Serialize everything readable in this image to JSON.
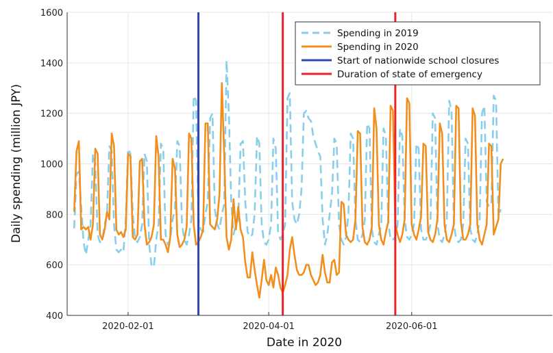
{
  "chart_data": {
    "type": "line",
    "xlabel": "Date in 2020",
    "ylabel": "Daily spending (million JPY)",
    "xlim": [
      "2020-01-06",
      "2020-07-31"
    ],
    "ylim": [
      400,
      1600
    ],
    "x_ticks": [
      "2020-02-01",
      "2020-04-01",
      "2020-06-01"
    ],
    "y_ticks": [
      400,
      600,
      800,
      1000,
      1200,
      1400,
      1600
    ],
    "grid": true,
    "legend_position": "top-right",
    "start_date": "2020-01-09",
    "series": [
      {
        "name": "Spending in 2019",
        "style": "dashed",
        "color": "#87CEEB",
        "values": [
          745,
          960,
          970,
          830,
          690,
          640,
          700,
          760,
          1040,
          1000,
          720,
          690,
          700,
          760,
          800,
          1070,
          1050,
          760,
          660,
          650,
          660,
          650,
          780,
          1060,
          1040,
          800,
          700,
          690,
          710,
          760,
          1040,
          1010,
          680,
          600,
          590,
          700,
          760,
          1080,
          1060,
          720,
          680,
          700,
          780,
          820,
          1090,
          1070,
          760,
          700,
          680,
          720,
          780,
          1270,
          1250,
          780,
          740,
          730,
          800,
          850,
          1180,
          1200,
          820,
          760,
          740,
          800,
          840,
          1410,
          1200,
          850,
          720,
          760,
          780,
          1080,
          1090,
          850,
          730,
          710,
          720,
          800,
          1110,
          1080,
          760,
          690,
          680,
          700,
          760,
          1100,
          1060,
          730,
          700,
          720,
          760,
          1260,
          1280,
          850,
          780,
          760,
          800,
          900,
          1200,
          1210,
          1180,
          1170,
          1110,
          1080,
          1050,
          1030,
          780,
          680,
          720,
          800,
          880,
          1100,
          1080,
          760,
          700,
          680,
          710,
          800,
          1120,
          1100,
          780,
          700,
          690,
          720,
          780,
          1160,
          1140,
          740,
          690,
          680,
          720,
          760,
          1140,
          1110,
          770,
          700,
          700,
          710,
          760,
          1140,
          1110,
          780,
          710,
          700,
          720,
          760,
          1080,
          1060,
          740,
          700,
          700,
          720,
          760,
          1200,
          1180,
          760,
          700,
          690,
          720,
          780,
          1250,
          1210,
          760,
          700,
          690,
          700,
          760,
          1100,
          1080,
          740,
          700,
          690,
          720,
          780,
          1200,
          1230,
          850,
          830,
          840,
          1270,
          1250,
          790,
          820
        ]
      },
      {
        "name": "Spending in 2020",
        "style": "solid",
        "color": "#F28E1C",
        "values": [
          810,
          1050,
          1090,
          740,
          750,
          740,
          750,
          700,
          760,
          1060,
          1040,
          720,
          700,
          740,
          810,
          780,
          1120,
          1070,
          740,
          720,
          730,
          710,
          740,
          1040,
          1030,
          710,
          700,
          720,
          1010,
          1020,
          760,
          680,
          690,
          710,
          760,
          1110,
          1030,
          700,
          700,
          680,
          650,
          710,
          1020,
          980,
          720,
          670,
          680,
          700,
          750,
          1120,
          1100,
          760,
          680,
          690,
          710,
          740,
          1160,
          1160,
          760,
          750,
          740,
          780,
          880,
          1320,
          1040,
          710,
          660,
          700,
          860,
          740,
          830,
          740,
          710,
          610,
          550,
          550,
          650,
          580,
          520,
          470,
          540,
          620,
          540,
          520,
          560,
          510,
          590,
          560,
          510,
          490,
          520,
          560,
          660,
          710,
          640,
          580,
          560,
          560,
          570,
          600,
          600,
          560,
          540,
          520,
          530,
          560,
          640,
          570,
          530,
          530,
          610,
          620,
          560,
          570,
          850,
          840,
          720,
          700,
          690,
          700,
          780,
          1130,
          1120,
          750,
          690,
          680,
          700,
          750,
          1220,
          1140,
          760,
          700,
          680,
          730,
          770,
          1230,
          1210,
          760,
          720,
          690,
          720,
          780,
          1260,
          1240,
          760,
          720,
          700,
          740,
          790,
          1080,
          1070,
          730,
          700,
          690,
          720,
          780,
          1160,
          1120,
          760,
          700,
          690,
          720,
          760,
          1230,
          1220,
          770,
          700,
          700,
          720,
          760,
          1220,
          1190,
          760,
          700,
          680,
          720,
          760,
          1080,
          1070,
          720,
          750,
          780,
          1000,
          1020
        ]
      },
      {
        "name": "Start of nationwide school closures",
        "style": "vline",
        "color": "#2F44B0",
        "x": "2020-03-02"
      },
      {
        "name": "Duration of state of emergency",
        "style": "vline",
        "color": "#E8222A",
        "x": [
          "2020-04-07",
          "2020-05-25"
        ]
      }
    ]
  }
}
